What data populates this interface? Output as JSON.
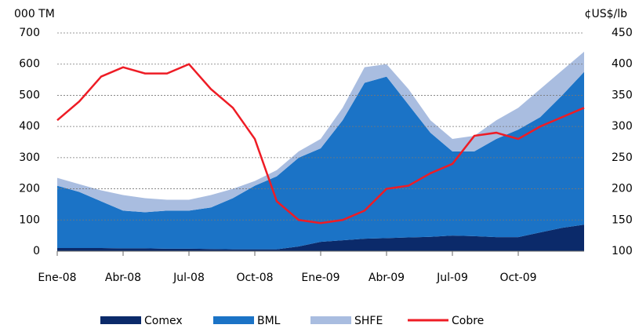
{
  "chart_data": {
    "type": "area",
    "y_label": "000 TM",
    "y2_label": "¢US$/lb",
    "x": [
      "Ene-08",
      null,
      null,
      "Abr-08",
      null,
      null,
      "Jul-08",
      null,
      null,
      "Oct-08",
      null,
      null,
      "Ene-09",
      null,
      null,
      "Abr-09",
      null,
      null,
      "Jul-09",
      null,
      null,
      "Oct-09",
      null,
      null,
      null
    ],
    "series": [
      {
        "name": "Comex",
        "color": "#0b2a6a",
        "values": [
          10,
          10,
          10,
          9,
          9,
          8,
          8,
          7,
          6,
          6,
          6,
          15,
          30,
          35,
          40,
          42,
          44,
          46,
          50,
          48,
          45,
          45,
          60,
          75,
          85
        ]
      },
      {
        "name": "BML",
        "color": "#1b73c6",
        "values": [
          200,
          180,
          150,
          121,
          116,
          122,
          122,
          133,
          164,
          204,
          234,
          285,
          300,
          385,
          500,
          518,
          426,
          334,
          270,
          272,
          315,
          345,
          370,
          425,
          490
        ]
      },
      {
        "name": "SHFE",
        "color": "#a9bde0",
        "values": [
          25,
          25,
          35,
          50,
          45,
          35,
          35,
          40,
          30,
          15,
          20,
          20,
          30,
          40,
          50,
          40,
          50,
          40,
          40,
          50,
          60,
          70,
          90,
          80,
          65
        ]
      },
      {
        "name": "Cobre",
        "color": "#ee1c25",
        "type": "line",
        "axis": "y2",
        "values": [
          310,
          340,
          380,
          395,
          385,
          385,
          400,
          360,
          330,
          280,
          180,
          150,
          145,
          150,
          165,
          200,
          205,
          225,
          240,
          285,
          290,
          280,
          300,
          315,
          330
        ]
      }
    ],
    "ylim": [
      0,
      700
    ],
    "yticks": [
      0,
      100,
      200,
      300,
      400,
      500,
      600,
      700
    ],
    "y2lim": [
      100,
      450
    ],
    "y2ticks": [
      100,
      150,
      200,
      250,
      300,
      350,
      400,
      450
    ],
    "grid": true,
    "legend": "bottom"
  }
}
